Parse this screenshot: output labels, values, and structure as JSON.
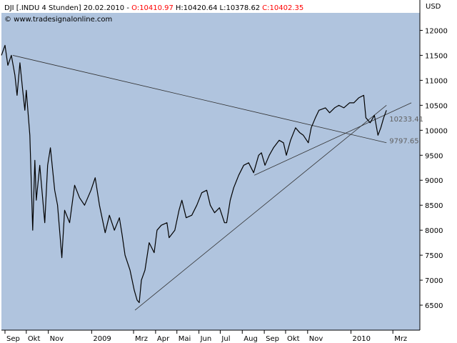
{
  "header": {
    "symbol": "DJI [.INDU  4 Stunden] 20.02.2010 - ",
    "open": "O:10410.97",
    "high": "H:10420.64",
    "low": "L:10378.62",
    "close": "C:10402.35",
    "watermark": "© www.tradesignalonline.com",
    "currency": "USD"
  },
  "colors": {
    "plot_bg": "#b0c4de",
    "line": "#000000",
    "open_close": "#ff0000",
    "annotation": "#606060"
  },
  "chart_data": {
    "type": "line",
    "title": "",
    "xlabel": "",
    "ylabel": "USD",
    "ylim": [
      6000,
      12350
    ],
    "y_ticks": [
      6500,
      7000,
      7500,
      8000,
      8500,
      9000,
      9500,
      10000,
      10500,
      11000,
      11500,
      12000
    ],
    "x_ticks": [
      "Sep",
      "Okt",
      "Nov",
      "2009",
      "Mrz",
      "Apr",
      "Mai",
      "Jun",
      "Jul",
      "Aug",
      "Sep",
      "Okt",
      "Nov",
      "2010",
      "Mrz"
    ],
    "x_range": [
      "2008-08-27",
      "2010-04-08"
    ],
    "grid": false,
    "series": [
      {
        "points": [
          [
            "2008-08-27",
            11500
          ],
          [
            "2008-09-01",
            11700
          ],
          [
            "2008-09-05",
            11300
          ],
          [
            "2008-09-10",
            11500
          ],
          [
            "2008-09-15",
            11100
          ],
          [
            "2008-09-18",
            10700
          ],
          [
            "2008-09-22",
            11350
          ],
          [
            "2008-09-26",
            10800
          ],
          [
            "2008-09-29",
            10400
          ],
          [
            "2008-10-01",
            10800
          ],
          [
            "2008-10-06",
            9900
          ],
          [
            "2008-10-10",
            8000
          ],
          [
            "2008-10-13",
            9400
          ],
          [
            "2008-10-15",
            8600
          ],
          [
            "2008-10-20",
            9300
          ],
          [
            "2008-10-27",
            8150
          ],
          [
            "2008-10-31",
            9300
          ],
          [
            "2008-11-04",
            9650
          ],
          [
            "2008-11-10",
            8800
          ],
          [
            "2008-11-14",
            8500
          ],
          [
            "2008-11-20",
            7450
          ],
          [
            "2008-11-24",
            8400
          ],
          [
            "2008-12-01",
            8150
          ],
          [
            "2008-12-08",
            8900
          ],
          [
            "2008-12-15",
            8650
          ],
          [
            "2008-12-22",
            8500
          ],
          [
            "2008-12-31",
            8800
          ],
          [
            "2009-01-06",
            9050
          ],
          [
            "2009-01-12",
            8500
          ],
          [
            "2009-01-20",
            7950
          ],
          [
            "2009-01-26",
            8300
          ],
          [
            "2009-02-02",
            8000
          ],
          [
            "2009-02-09",
            8250
          ],
          [
            "2009-02-13",
            7900
          ],
          [
            "2009-02-17",
            7500
          ],
          [
            "2009-02-24",
            7200
          ],
          [
            "2009-03-02",
            6800
          ],
          [
            "2009-03-06",
            6600
          ],
          [
            "2009-03-09",
            6550
          ],
          [
            "2009-03-12",
            7000
          ],
          [
            "2009-03-17",
            7200
          ],
          [
            "2009-03-23",
            7750
          ],
          [
            "2009-03-30",
            7550
          ],
          [
            "2009-04-03",
            8000
          ],
          [
            "2009-04-09",
            8100
          ],
          [
            "2009-04-17",
            8150
          ],
          [
            "2009-04-20",
            7850
          ],
          [
            "2009-04-28",
            8000
          ],
          [
            "2009-05-04",
            8400
          ],
          [
            "2009-05-08",
            8600
          ],
          [
            "2009-05-14",
            8250
          ],
          [
            "2009-05-22",
            8300
          ],
          [
            "2009-05-29",
            8500
          ],
          [
            "2009-06-05",
            8750
          ],
          [
            "2009-06-12",
            8800
          ],
          [
            "2009-06-17",
            8500
          ],
          [
            "2009-06-23",
            8350
          ],
          [
            "2009-06-30",
            8450
          ],
          [
            "2009-07-07",
            8150
          ],
          [
            "2009-07-10",
            8150
          ],
          [
            "2009-07-15",
            8600
          ],
          [
            "2009-07-20",
            8850
          ],
          [
            "2009-07-27",
            9100
          ],
          [
            "2009-08-03",
            9300
          ],
          [
            "2009-08-10",
            9350
          ],
          [
            "2009-08-17",
            9150
          ],
          [
            "2009-08-24",
            9500
          ],
          [
            "2009-08-28",
            9550
          ],
          [
            "2009-09-02",
            9300
          ],
          [
            "2009-09-08",
            9500
          ],
          [
            "2009-09-14",
            9650
          ],
          [
            "2009-09-22",
            9800
          ],
          [
            "2009-09-28",
            9750
          ],
          [
            "2009-10-02",
            9500
          ],
          [
            "2009-10-08",
            9800
          ],
          [
            "2009-10-15",
            10050
          ],
          [
            "2009-10-21",
            9950
          ],
          [
            "2009-10-26",
            9900
          ],
          [
            "2009-11-02",
            9750
          ],
          [
            "2009-11-06",
            10050
          ],
          [
            "2009-11-12",
            10250
          ],
          [
            "2009-11-17",
            10400
          ],
          [
            "2009-11-26",
            10450
          ],
          [
            "2009-12-02",
            10350
          ],
          [
            "2009-12-09",
            10450
          ],
          [
            "2009-12-15",
            10500
          ],
          [
            "2009-12-22",
            10450
          ],
          [
            "2009-12-30",
            10550
          ],
          [
            "2010-01-05",
            10550
          ],
          [
            "2010-01-12",
            10650
          ],
          [
            "2010-01-19",
            10700
          ],
          [
            "2010-01-22",
            10250
          ],
          [
            "2010-01-28",
            10150
          ],
          [
            "2010-02-03",
            10300
          ],
          [
            "2010-02-08",
            9900
          ],
          [
            "2010-02-12",
            10050
          ],
          [
            "2010-02-16",
            10250
          ],
          [
            "2010-02-20",
            10400
          ]
        ]
      }
    ],
    "trendlines": [
      {
        "from": [
          "2008-09-12",
          11500
        ],
        "to": [
          "2010-02-20",
          9750
        ]
      },
      {
        "from": [
          "2009-03-03",
          6400
        ],
        "to": [
          "2010-02-20",
          10500
        ]
      },
      {
        "from": [
          "2009-08-18",
          9100
        ],
        "to": [
          "2010-03-27",
          10550
        ]
      }
    ],
    "annotations": [
      {
        "date": "2010-02-20",
        "value": 10233.41,
        "text": "10233.41"
      },
      {
        "date": "2010-02-20",
        "value": 9797.65,
        "text": "9797.65"
      }
    ]
  }
}
